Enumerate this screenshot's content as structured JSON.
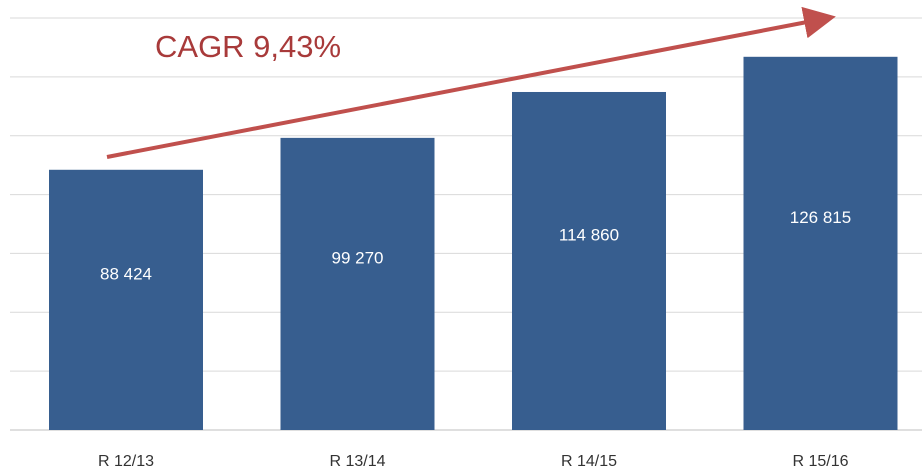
{
  "chart_data": {
    "type": "bar",
    "annotation": "CAGR 9,43%",
    "categories": [
      "R 12/13",
      "R 13/14",
      "R 14/15",
      "R 15/16"
    ],
    "values": [
      88424,
      99270,
      114860,
      126815
    ],
    "value_labels": [
      "88 424",
      "99 270",
      "114 860",
      "126 815"
    ],
    "color": "#375e8f",
    "ylim": [
      0,
      140000
    ],
    "yticks": [
      0,
      20000,
      40000,
      60000,
      80000,
      100000,
      120000,
      140000
    ],
    "grid": true
  }
}
